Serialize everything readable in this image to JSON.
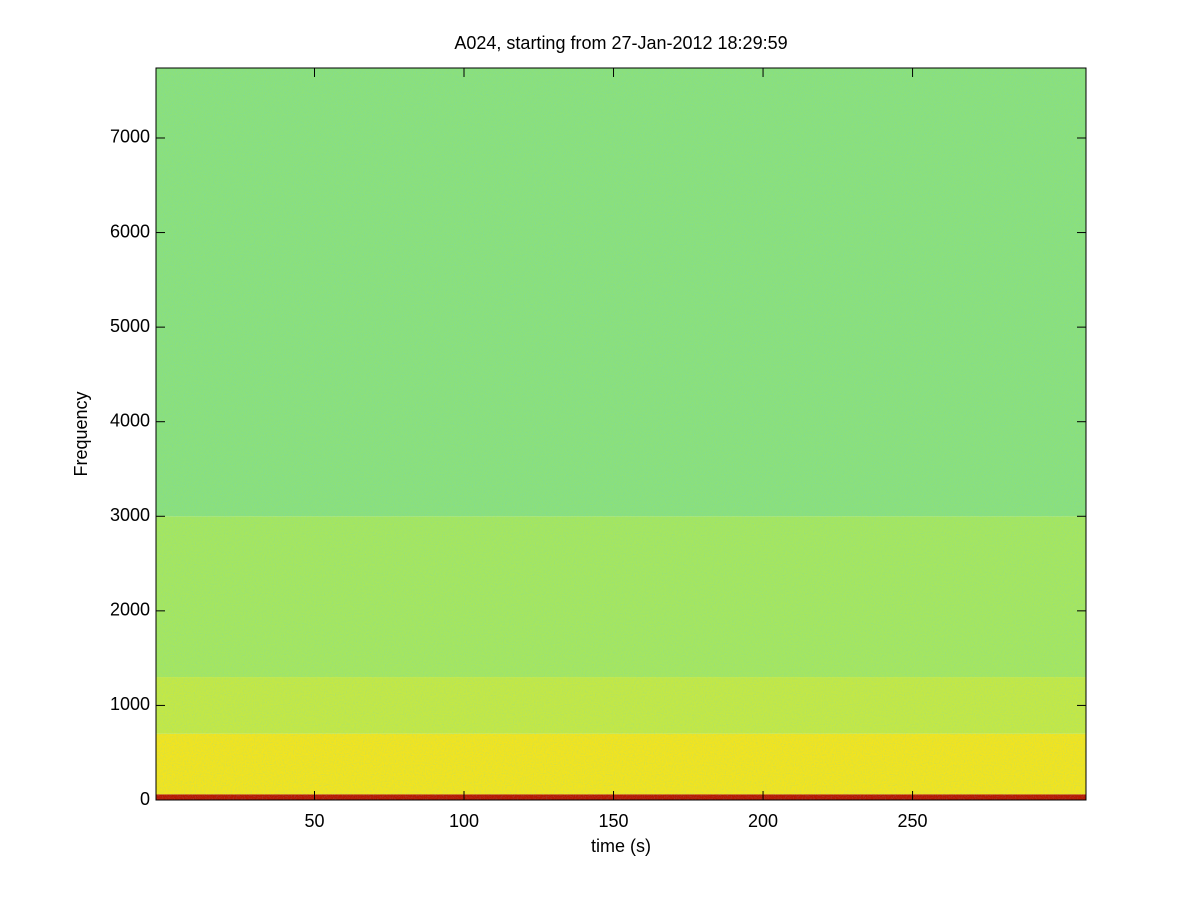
{
  "chart_data": {
    "type": "spectrogram",
    "title": "A024, starting from 27-Jan-2012 18:29:59",
    "x_label": "time (s)",
    "y_label": "Frequency",
    "xlim": [
      -3,
      308
    ],
    "xticks": [
      50,
      100,
      150,
      200,
      250
    ],
    "ylim": [
      0,
      7740
    ],
    "yticks": [
      0,
      1000,
      2000,
      3000,
      4000,
      5000,
      6000,
      7000
    ],
    "bands": [
      {
        "from": 0,
        "to": 60,
        "color": "#b81800"
      },
      {
        "from": 60,
        "to": 700,
        "color": "#f2e41e"
      },
      {
        "from": 700,
        "to": 1300,
        "color": "#c4e844"
      },
      {
        "from": 1300,
        "to": 3000,
        "color": "#a6e65e"
      },
      {
        "from": 3000,
        "to": 7740,
        "color": "#8ce07a"
      }
    ]
  }
}
